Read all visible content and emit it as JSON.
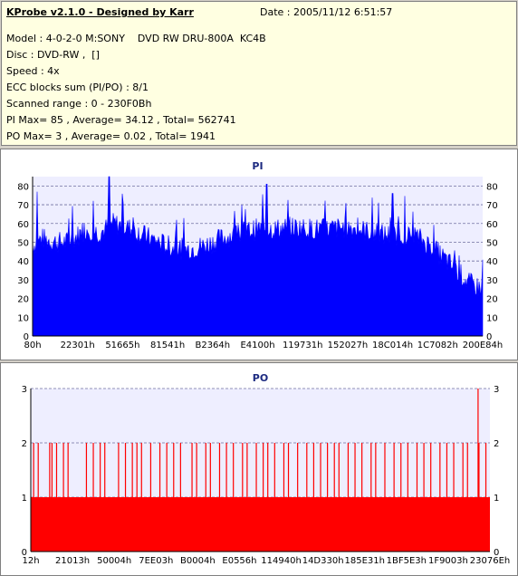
{
  "header": {
    "title": "KProbe v2.1.0 - Designed by Karr",
    "date": "Date : 2005/11/12 6:51:57",
    "lines": [
      "Model : 4-0-2-0 M:SONY    DVD RW DRU-800A  KC4B",
      "Disc : DVD-RW ,  []",
      "Speed : 4x",
      "ECC blocks sum (PI/PO) : 8/1",
      "Scanned range : 0 - 230F0Bh",
      "PI Max= 85 , Average= 34.12 , Total= 562741",
      "PO Max= 3 , Average= 0.02 , Total= 1941"
    ]
  },
  "colors": {
    "pi_fill": "#0000ff",
    "po_fill": "#ff0000",
    "plot_bg": "#eeeeff"
  },
  "chart_data": [
    {
      "type": "bar",
      "title": "PI",
      "x_tick_labels": [
        "80h",
        "22301h",
        "51665h",
        "81541h",
        "B2364h",
        "E4100h",
        "119731h",
        "152027h",
        "18C014h",
        "1C7082h",
        "200E84h"
      ],
      "y_ticks": [
        0,
        10,
        20,
        30,
        40,
        50,
        60,
        70,
        80
      ],
      "ylim": [
        0,
        85
      ],
      "grid": true,
      "envelope": [
        [
          0,
          48
        ],
        [
          2,
          52
        ],
        [
          5,
          50
        ],
        [
          8,
          50
        ],
        [
          12,
          57
        ],
        [
          15,
          55
        ],
        [
          18,
          60
        ],
        [
          22,
          57
        ],
        [
          26,
          52
        ],
        [
          30,
          48
        ],
        [
          34,
          46
        ],
        [
          38,
          48
        ],
        [
          42,
          52
        ],
        [
          46,
          55
        ],
        [
          50,
          57
        ],
        [
          54,
          57
        ],
        [
          58,
          58
        ],
        [
          62,
          57
        ],
        [
          66,
          57
        ],
        [
          70,
          58
        ],
        [
          74,
          56
        ],
        [
          78,
          54
        ],
        [
          82,
          54
        ],
        [
          86,
          52
        ],
        [
          89,
          47
        ],
        [
          92,
          40
        ],
        [
          95,
          33
        ],
        [
          97,
          28
        ],
        [
          100,
          25
        ]
      ],
      "peaks": [
        [
          1,
          77
        ],
        [
          17,
          85
        ],
        [
          52,
          81
        ],
        [
          80,
          76
        ]
      ]
    },
    {
      "type": "bar",
      "title": "PO",
      "x_tick_labels": [
        "12h",
        "21013h",
        "50004h",
        "7EE03h",
        "B0004h",
        "E0556h",
        "114940h",
        "14D330h",
        "185E31h",
        "1BF5E3h",
        "1F9003h",
        "23076Eh"
      ],
      "y_ticks": [
        0,
        1,
        2,
        3
      ],
      "ylim": [
        0,
        3
      ],
      "grid": true,
      "baseline_value": 1,
      "spikes_value_2_pct": [
        0.5,
        1.5,
        4,
        4.5,
        5.5,
        7,
        8,
        12,
        13.5,
        15,
        16,
        19,
        20.5,
        22,
        23,
        24,
        26,
        28,
        29.5,
        31,
        32.5,
        35,
        36,
        38,
        39,
        41,
        42.5,
        44,
        46,
        47,
        49,
        50.5,
        51.5,
        53,
        55,
        56,
        58,
        60,
        61.5,
        63,
        64.5,
        66,
        67,
        69,
        70.5,
        72,
        74,
        75,
        77,
        79,
        80.5,
        82,
        84,
        85.5,
        87,
        89,
        90.5,
        92,
        94,
        95,
        97.5,
        99
      ],
      "spikes_value_3_pct": [
        97.3
      ]
    }
  ]
}
